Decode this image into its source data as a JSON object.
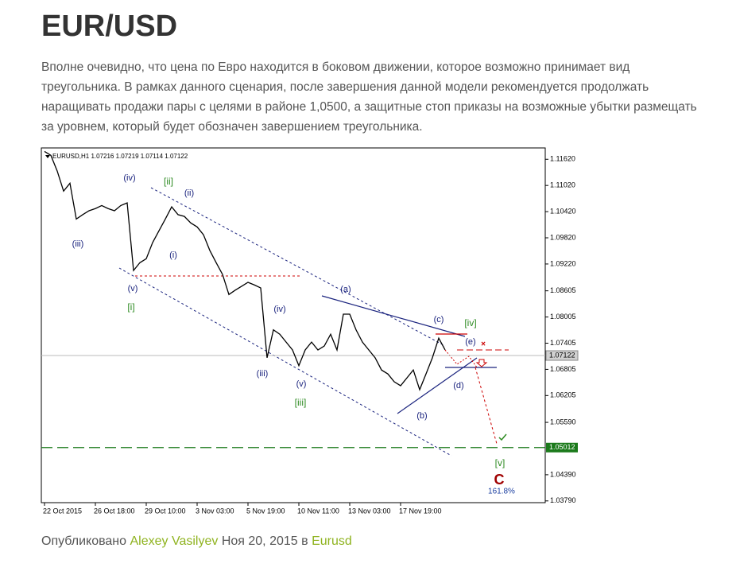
{
  "header": {
    "title": "EUR/USD"
  },
  "paragraph_lines": [
    "Вполне очевидно, что цена по Евро находится в боковом движении, которое возможно принимает  вид",
    "треугольника. В рамках данного сценария, после завершения данной модели рекомендуется продолжать",
    "наращивать продажи пары с целями в районе 1,0500, а защитные стоп приказы на возможные убытки размещать",
    "за уровнем, который будет обозначен завершением треугольника."
  ],
  "chart_data": {
    "type": "line",
    "chart_header": "EURUSD,H1  1.07216 1.07219 1.07114 1.07122",
    "categories": [
      "22 Oct 2015",
      null,
      null,
      null,
      null,
      null,
      null,
      null,
      "26 Oct 18:00",
      null,
      null,
      null,
      null,
      null,
      null,
      null,
      "29 Oct 10:00",
      null,
      null,
      null,
      null,
      null,
      null,
      null,
      "3 Nov 03:00",
      null,
      null,
      null,
      null,
      null,
      null,
      null,
      "5 Nov 19:00",
      null,
      null,
      null,
      null,
      null,
      null,
      null,
      "10 Nov 11:00",
      null,
      null,
      null,
      null,
      null,
      null,
      null,
      "13 Nov 03:00",
      null,
      null,
      null,
      null,
      null,
      null,
      null,
      "17 Nov 19:00",
      null,
      null,
      null,
      null,
      null,
      null,
      null
    ],
    "series": [
      {
        "name": "EURUSD",
        "color": "#000000",
        "values": [
          1.118,
          1.1171,
          1.1135,
          1.1089,
          1.1107,
          1.1025,
          1.1035,
          1.1044,
          1.1049,
          1.1056,
          1.1049,
          1.1044,
          1.1056,
          1.1062,
          1.0907,
          1.0925,
          1.0934,
          1.0971,
          1.0998,
          1.1025,
          1.1053,
          1.1035,
          1.1031,
          1.1016,
          1.1007,
          1.0989,
          1.0953,
          1.0925,
          1.0898,
          1.0852,
          1.0862,
          1.0871,
          1.088,
          1.0874,
          1.0867,
          1.0707,
          1.0771,
          1.0761,
          1.0743,
          1.0725,
          1.0689,
          1.0725,
          1.0743,
          1.0725,
          1.0734,
          1.0761,
          1.0725,
          1.0807,
          1.0807,
          1.0771,
          1.0743,
          1.0725,
          1.0707,
          1.0679,
          1.067,
          1.0652,
          1.0643,
          1.0661,
          1.0679,
          1.0634,
          1.067,
          1.0707,
          1.0752,
          1.0725
        ]
      }
    ],
    "ylim": [
      1.0375,
      1.1188
    ],
    "yticks": [
      {
        "value": 1.1162,
        "label": "1.11620"
      },
      {
        "value": 1.1102,
        "label": "1.11020"
      },
      {
        "value": 1.1042,
        "label": "1.10420"
      },
      {
        "value": 1.0982,
        "label": "1.09820"
      },
      {
        "value": 1.0922,
        "label": "1.09220"
      },
      1.08605,
      1.08005,
      1.07405,
      1.06805,
      1.06205,
      {
        "value": 1.0559,
        "label": "1.05590"
      },
      {
        "value": 1.0439,
        "label": "1.04390"
      },
      {
        "value": 1.0379,
        "label": "1.03790"
      }
    ],
    "current_price": 1.07122,
    "target_price": 1.05012,
    "annotations": [
      {
        "text": "(iv)",
        "color": "#1a237e"
      },
      {
        "text": "[ii]",
        "color": "#2e8b22"
      },
      {
        "text": "(ii)",
        "color": "#1a237e"
      },
      {
        "text": "(iii)",
        "color": "#1a237e"
      },
      {
        "text": "(i)",
        "color": "#1a237e"
      },
      {
        "text": "(v)",
        "color": "#1a237e"
      },
      {
        "text": "[i]",
        "color": "#2e8b22"
      },
      {
        "text": "(iii)",
        "color": "#1a237e"
      },
      {
        "text": "(iv)",
        "color": "#1a237e"
      },
      {
        "text": "(v)",
        "color": "#1a237e"
      },
      {
        "text": "[iii]",
        "color": "#2e8b22"
      },
      {
        "text": "(a)",
        "color": "#1a237e"
      },
      {
        "text": "(c)",
        "color": "#1a237e"
      },
      {
        "text": "[iv]",
        "color": "#2e8b22"
      },
      {
        "text": "(e)",
        "color": "#1a237e"
      },
      {
        "text": "(d)",
        "color": "#1a237e"
      },
      {
        "text": "(b)",
        "color": "#1a237e"
      },
      {
        "text": "[v]",
        "color": "#2e8b22"
      },
      {
        "text": "C",
        "color": "#a00000"
      },
      {
        "text": "161.8%",
        "color": "#1a3ea0"
      }
    ]
  },
  "footer": {
    "prefix": "Опубликовано",
    "author": "Alexey Vasilyev",
    "date": "Ноя 20, 2015",
    "in_word": "в",
    "category": "Eurusd"
  }
}
